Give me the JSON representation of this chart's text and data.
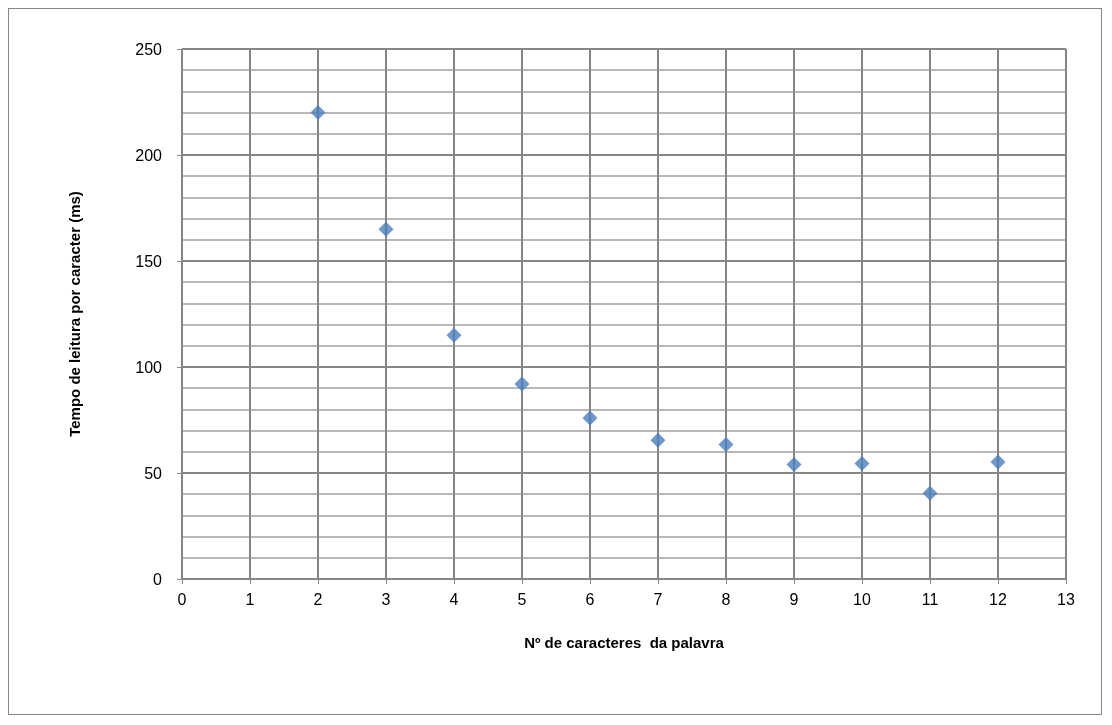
{
  "chart_data": {
    "type": "scatter",
    "xlabel": "Nº de caracteres  da palavra",
    "ylabel": "Tempo de leitura por caracter (ms)",
    "x": [
      2,
      3,
      4,
      5,
      6,
      7,
      8,
      9,
      10,
      11,
      12
    ],
    "series": [
      {
        "color": "#4a7ebb",
        "values": [
          220,
          165,
          115,
          92,
          76,
          65.5,
          63.4,
          54,
          54.5,
          40.4,
          55.2
        ]
      }
    ],
    "xlim": [
      0,
      13
    ],
    "xticks": [
      0,
      1,
      2,
      3,
      4,
      5,
      6,
      7,
      8,
      9,
      10,
      11,
      12,
      13
    ],
    "ylim": [
      0,
      250
    ],
    "yticks": [
      0,
      50,
      100,
      150,
      200,
      250
    ],
    "grid": true,
    "marker": "diamond"
  }
}
